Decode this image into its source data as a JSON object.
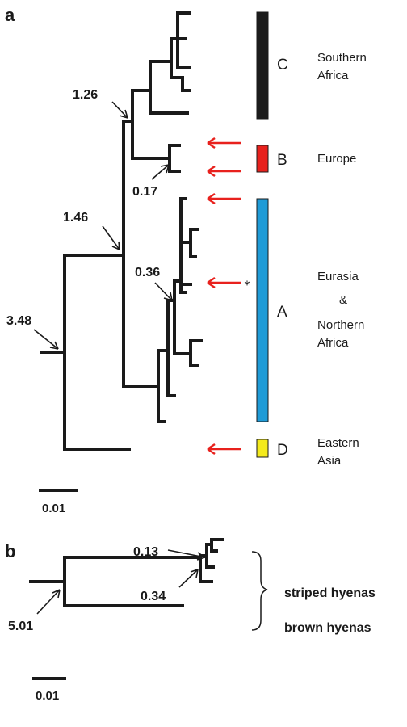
{
  "panel_a": {
    "label": "a",
    "node_values": {
      "n1": "1.26",
      "n2": "0.17",
      "n3": "1.46",
      "n4": "0.36",
      "n5": "3.48"
    },
    "clades": {
      "c": {
        "letter": "C",
        "region_line1": "Southern",
        "region_line2": "Africa",
        "color": "#1c1c1c"
      },
      "b": {
        "letter": "B",
        "region_line1": "Europe",
        "color": "#e8211d"
      },
      "a": {
        "letter": "A",
        "region_line1": "Eurasia",
        "region_line2": "&",
        "region_line3": "Northern",
        "region_line4": "Africa",
        "color": "#1f9bd7"
      },
      "d": {
        "letter": "D",
        "region_line1": "Eastern",
        "region_line2": "Asia",
        "color": "#f4ea1c"
      }
    },
    "asterisk": "*",
    "scale": "0.01"
  },
  "panel_b": {
    "label": "b",
    "node_values": {
      "n1": "0.13",
      "n2": "0.34",
      "n3": "5.01"
    },
    "groups": {
      "striped": "striped hyenas",
      "brown": "brown hyenas"
    },
    "scale": "0.01"
  },
  "colors": {
    "arrow_red": "#e8211d",
    "branch": "#1a1a1a"
  }
}
